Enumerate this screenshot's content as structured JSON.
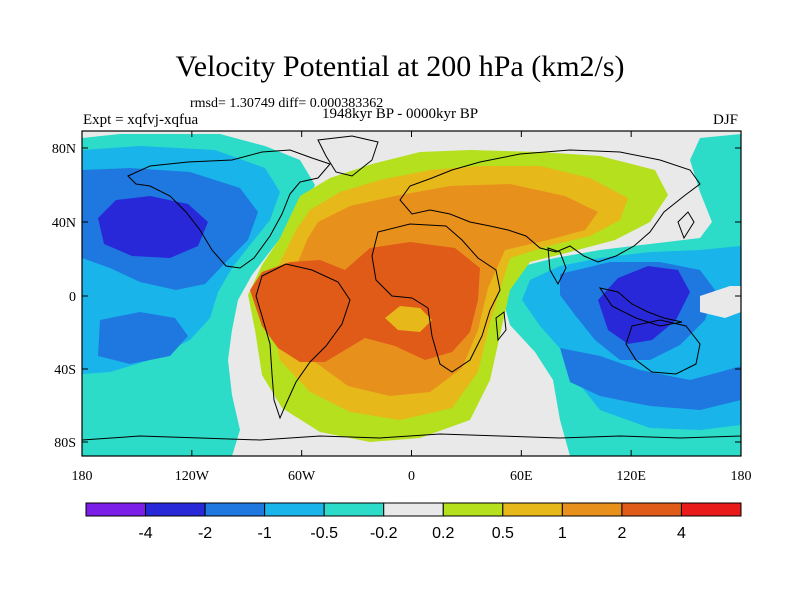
{
  "title": "Velocity Potential at 200 hPa (km2/s)",
  "stats": "rmsd= 1.30749 diff= 0.000383362",
  "experiment": "Expt = xqfvj-xqfua",
  "period": "1948kyr BP - 0000kyr BP",
  "season": "DJF",
  "colors": {
    "bg_zero": "#e9e9e9",
    "n4": "#7a1ee8",
    "n3": "#2828d8",
    "n2": "#1e78e0",
    "n1": "#18b4ea",
    "n05": "#2cdcc8",
    "p02": "#b4e01e",
    "p05": "#e6b81a",
    "p1": "#e8901c",
    "p2": "#e05a18",
    "p4": "#e81a1a"
  },
  "map": {
    "lon_ticks": [
      "180",
      "120W",
      "60W",
      "0",
      "60E",
      "120E",
      "180"
    ],
    "lat_ticks": [
      "80N",
      "40N",
      "0",
      "40S",
      "80S"
    ]
  },
  "colorbar": {
    "labels": [
      "-4",
      "-2",
      "-1",
      "-0.5",
      "-0.2",
      "0.2",
      "0.5",
      "1",
      "2",
      "4"
    ],
    "colors": [
      "#7a1ee8",
      "#2828d8",
      "#1e78e0",
      "#18b4ea",
      "#2cdcc8",
      "#e9e9e9",
      "#b4e01e",
      "#e6b81a",
      "#e8901c",
      "#e05a18",
      "#e81a1a"
    ]
  }
}
